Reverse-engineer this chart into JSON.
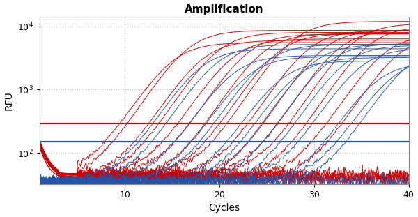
{
  "title": "Amplification",
  "xlabel": "Cycles",
  "ylabel": "RFU",
  "xlim": [
    1,
    40
  ],
  "ylim_log": [
    32,
    14000
  ],
  "yticks": [
    100,
    1000,
    10000
  ],
  "xticks": [
    10,
    20,
    30,
    40
  ],
  "grid_color": "#bbbbbb",
  "bg_color": "#ffffff",
  "red_threshold": 290,
  "blue_threshold": 150,
  "red_color": "#cc0000",
  "blue_color": "#2255aa",
  "spine_color": "#888888",
  "red_curves": {
    "n_amplified": 16,
    "n_flat": 6,
    "Ct_range": [
      15,
      39
    ],
    "plateau_range": [
      5000,
      12000
    ],
    "baseline": 42,
    "baseline_noise": 4,
    "early_peak": 100
  },
  "blue_curves": {
    "n_amplified": 14,
    "n_flat": 2,
    "Ct_range": [
      18,
      40
    ],
    "plateau_range": [
      2500,
      5500
    ],
    "baseline": 35,
    "baseline_noise": 3
  }
}
